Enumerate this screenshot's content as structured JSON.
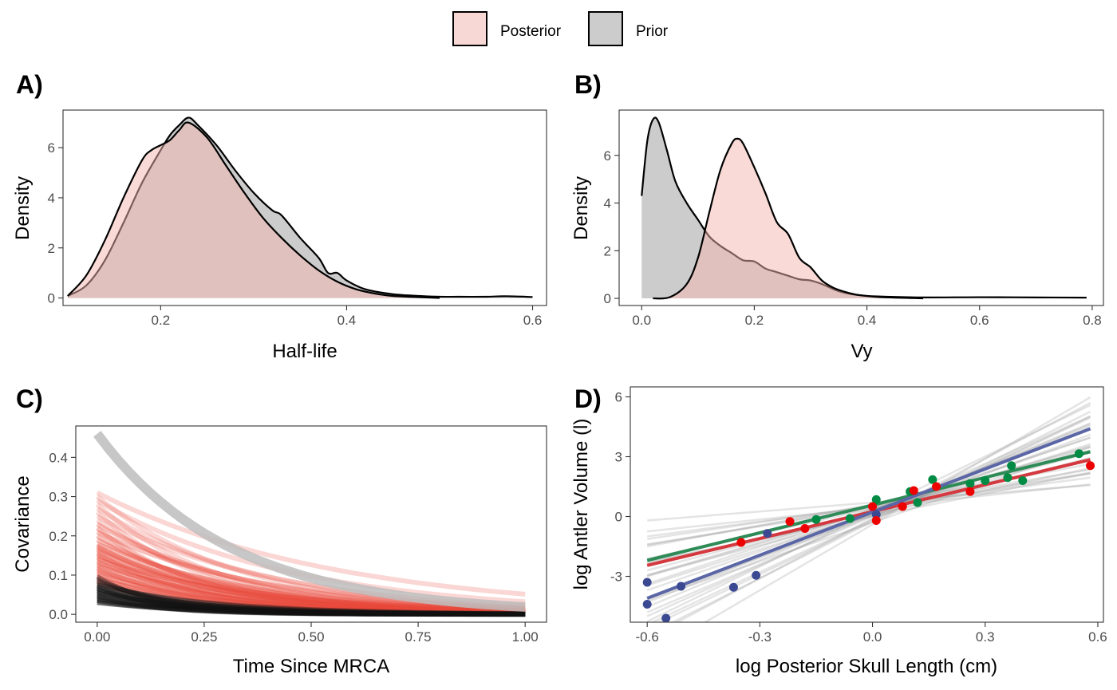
{
  "legend": {
    "items": [
      {
        "label": "Posterior",
        "fill": "#f8d8d4"
      },
      {
        "label": "Prior",
        "fill": "#cccccc"
      }
    ]
  },
  "colors": {
    "posterior_fill": "#f4b6ae",
    "prior_fill": "#999999",
    "outline": "#000000",
    "cov_posterior": "#e8473a",
    "cov_prior": "#bdbdbd",
    "group_red": "#ee0000",
    "group_green": "#008b45",
    "group_blue": "#3b4992",
    "fit_red": "#d4393f",
    "fit_green": "#2e8b57",
    "fit_blue": "#5a66a6"
  },
  "chart_data": [
    {
      "id": "A",
      "tag": "A)",
      "type": "area",
      "xlabel": "Half-life",
      "ylabel": "Density",
      "xlim": [
        0.095,
        0.615
      ],
      "ylim": [
        -0.3,
        7.5
      ],
      "xticks": [
        0.2,
        0.4,
        0.6
      ],
      "xtick_labels": [
        "0.2",
        "0.4",
        "0.6"
      ],
      "yticks": [
        0,
        2,
        4,
        6
      ],
      "ytick_labels": [
        "0",
        "2",
        "4",
        "6"
      ],
      "series": [
        {
          "name": "Prior",
          "x": [
            0.1,
            0.12,
            0.14,
            0.16,
            0.18,
            0.2,
            0.21,
            0.22,
            0.23,
            0.24,
            0.26,
            0.28,
            0.3,
            0.32,
            0.33,
            0.35,
            0.37,
            0.38,
            0.39,
            0.4,
            0.42,
            0.45,
            0.48,
            0.5,
            0.52,
            0.55,
            0.57,
            0.6
          ],
          "y": [
            0.08,
            0.5,
            1.5,
            3.0,
            4.6,
            5.9,
            6.5,
            6.9,
            7.2,
            6.9,
            6.1,
            5.1,
            4.2,
            3.5,
            3.3,
            2.4,
            1.6,
            1.0,
            1.0,
            0.7,
            0.35,
            0.15,
            0.08,
            0.05,
            0.05,
            0.05,
            0.07,
            0.04
          ]
        },
        {
          "name": "Posterior",
          "x": [
            0.1,
            0.12,
            0.14,
            0.16,
            0.18,
            0.19,
            0.2,
            0.21,
            0.22,
            0.23,
            0.25,
            0.27,
            0.29,
            0.31,
            0.33,
            0.35,
            0.37,
            0.39,
            0.41,
            0.43,
            0.45,
            0.48,
            0.5
          ],
          "y": [
            0.08,
            0.9,
            2.3,
            4.0,
            5.5,
            5.9,
            6.1,
            6.3,
            6.7,
            7.0,
            6.4,
            5.3,
            4.2,
            3.2,
            2.4,
            1.7,
            1.1,
            0.65,
            0.35,
            0.18,
            0.08,
            0.03,
            0.0
          ]
        }
      ]
    },
    {
      "id": "B",
      "tag": "B)",
      "type": "area",
      "xlabel": "Vy",
      "ylabel": "Density",
      "xlim": [
        -0.04,
        0.82
      ],
      "ylim": [
        -0.3,
        7.9
      ],
      "xticks": [
        0.0,
        0.2,
        0.4,
        0.6,
        0.8
      ],
      "xtick_labels": [
        "0.0",
        "0.2",
        "0.4",
        "0.6",
        "0.8"
      ],
      "yticks": [
        0,
        2,
        4,
        6
      ],
      "ytick_labels": [
        "0",
        "2",
        "4",
        "6"
      ],
      "series": [
        {
          "name": "Prior",
          "x": [
            0.0,
            0.01,
            0.02,
            0.03,
            0.045,
            0.06,
            0.08,
            0.1,
            0.12,
            0.14,
            0.16,
            0.18,
            0.2,
            0.22,
            0.24,
            0.26,
            0.28,
            0.3,
            0.32,
            0.35,
            0.38,
            0.42,
            0.5,
            0.6,
            0.7,
            0.79
          ],
          "y": [
            4.3,
            6.6,
            7.5,
            7.4,
            6.2,
            4.9,
            4.0,
            3.3,
            2.6,
            2.2,
            1.9,
            1.6,
            1.55,
            1.25,
            1.1,
            0.95,
            0.8,
            0.75,
            0.6,
            0.3,
            0.15,
            0.08,
            0.04,
            0.05,
            0.04,
            0.03
          ]
        },
        {
          "name": "Posterior",
          "x": [
            0.02,
            0.05,
            0.08,
            0.1,
            0.12,
            0.14,
            0.16,
            0.17,
            0.18,
            0.2,
            0.22,
            0.24,
            0.26,
            0.28,
            0.3,
            0.32,
            0.34,
            0.36,
            0.38,
            0.4,
            0.42,
            0.45,
            0.5
          ],
          "y": [
            0.0,
            0.05,
            0.6,
            1.7,
            3.6,
            5.4,
            6.5,
            6.7,
            6.5,
            5.5,
            4.4,
            3.2,
            2.7,
            1.7,
            1.3,
            0.75,
            0.45,
            0.28,
            0.16,
            0.1,
            0.06,
            0.03,
            0.0
          ]
        }
      ]
    },
    {
      "id": "C",
      "tag": "C)",
      "type": "line",
      "xlabel": "Time Since MRCA",
      "ylabel": "Covariance",
      "xlim": [
        -0.05,
        1.05
      ],
      "ylim": [
        -0.02,
        0.48
      ],
      "xticks": [
        0.0,
        0.25,
        0.5,
        0.75,
        1.0
      ],
      "xtick_labels": [
        "0.00",
        "0.25",
        "0.50",
        "0.75",
        "1.00"
      ],
      "yticks": [
        0.0,
        0.1,
        0.2,
        0.3,
        0.4
      ],
      "ytick_labels": [
        "0.0",
        "0.1",
        "0.2",
        "0.3",
        "0.4"
      ],
      "prior_curve": {
        "intercept": 0.46,
        "rate": 3.2
      },
      "posterior_curves": {
        "intercepts": [
          0.31,
          0.3,
          0.29,
          0.28,
          0.27,
          0.26,
          0.25,
          0.24,
          0.23,
          0.22,
          0.21,
          0.2,
          0.19,
          0.18,
          0.175,
          0.17,
          0.165,
          0.16,
          0.155,
          0.15,
          0.145,
          0.14,
          0.135,
          0.13,
          0.125,
          0.12,
          0.115,
          0.11,
          0.105,
          0.1,
          0.095,
          0.09,
          0.085,
          0.08,
          0.075,
          0.07,
          0.065,
          0.06,
          0.055,
          0.05,
          0.045,
          0.04,
          0.035,
          0.03
        ],
        "rates": [
          1.8,
          3.0,
          2.2,
          3.5,
          2.6,
          3.8,
          2.4,
          3.2,
          2.8,
          4.0,
          2.5,
          3.4,
          3.0,
          2.7,
          3.6,
          3.1,
          2.9,
          3.3,
          4.2,
          3.0,
          3.5,
          2.6,
          3.8,
          3.2,
          2.9,
          4.4,
          3.6,
          3.1,
          4.0,
          3.4,
          4.6,
          3.3,
          3.9,
          4.8,
          3.6,
          4.2,
          5.0,
          3.8,
          4.5,
          5.2,
          4.0,
          4.8,
          5.5,
          4.2
        ]
      }
    },
    {
      "id": "D",
      "tag": "D)",
      "type": "scatter",
      "xlabel": "log Posterior Skull Length (cm)",
      "ylabel": "log Antler Volume (l)",
      "xlim": [
        -0.645,
        0.615
      ],
      "ylim": [
        -5.3,
        6.5
      ],
      "xticks": [
        -0.6,
        -0.3,
        0.0,
        0.3,
        0.6
      ],
      "xtick_labels": [
        "-0.6",
        "-0.3",
        "0.0",
        "0.3",
        "0.6"
      ],
      "yticks": [
        -3,
        0,
        3,
        6
      ],
      "ytick_labels": [
        "-3",
        "0",
        "3",
        "6"
      ],
      "posterior_lines": {
        "intercepts": [
          -0.3,
          0.1,
          0.5,
          0.2,
          0.3,
          -0.2,
          0.4,
          0.0,
          0.35,
          0.15,
          0.25,
          -0.1,
          0.45,
          0.05,
          0.6,
          -0.4,
          0.2,
          0.3,
          0.1,
          0.0,
          0.55,
          -0.25,
          0.4,
          0.15,
          0.7,
          -0.15,
          0.35,
          0.05,
          0.25,
          0.5
        ],
        "slopes": [
          6.5,
          4.0,
          2.5,
          7.5,
          5.0,
          9.0,
          3.0,
          8.0,
          5.5,
          6.0,
          4.5,
          10.0,
          2.0,
          7.0,
          3.5,
          11.0,
          6.5,
          5.5,
          8.5,
          3.8,
          2.8,
          9.5,
          4.2,
          7.8,
          1.5,
          8.8,
          6.2,
          5.0,
          9.2,
          3.2
        ]
      },
      "fits": [
        {
          "group": "red",
          "x": [
            -0.6,
            0.58
          ],
          "y": [
            -2.45,
            2.85
          ]
        },
        {
          "group": "green",
          "x": [
            -0.6,
            0.58
          ],
          "y": [
            -2.2,
            3.25
          ]
        },
        {
          "group": "blue",
          "x": [
            -0.6,
            0.58
          ],
          "y": [
            -4.1,
            4.4
          ]
        }
      ],
      "points": {
        "red": {
          "x": [
            -0.35,
            -0.22,
            -0.18,
            0.0,
            0.01,
            0.08,
            0.11,
            0.17,
            0.26,
            0.58
          ],
          "y": [
            -1.3,
            -0.25,
            -0.6,
            0.5,
            -0.2,
            0.5,
            1.3,
            1.5,
            1.25,
            2.55
          ]
        },
        "green": {
          "x": [
            -0.15,
            -0.06,
            0.01,
            0.1,
            0.12,
            0.16,
            0.26,
            0.3,
            0.36,
            0.37,
            0.4,
            0.55
          ],
          "y": [
            -0.15,
            -0.1,
            0.85,
            1.25,
            0.7,
            1.85,
            1.65,
            1.8,
            1.95,
            2.55,
            1.8,
            3.15
          ]
        },
        "blue": {
          "x": [
            -0.6,
            -0.6,
            -0.51,
            -0.55,
            -0.37,
            -0.31,
            -0.28,
            0.01
          ],
          "y": [
            -4.4,
            -3.3,
            -3.5,
            -5.1,
            -3.55,
            -2.95,
            -0.85,
            0.1
          ]
        }
      }
    }
  ]
}
